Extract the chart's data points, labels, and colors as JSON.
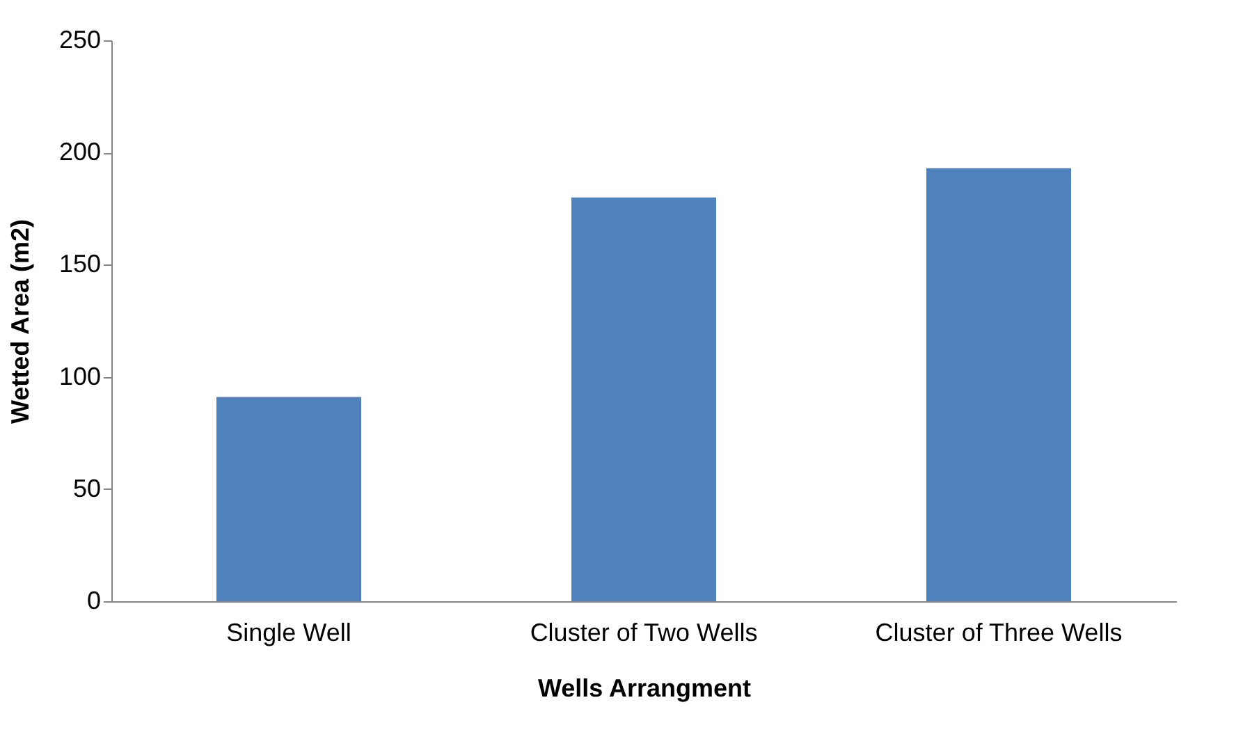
{
  "chart_data": {
    "type": "bar",
    "xlabel": "Wells Arrangment",
    "ylabel": "Wetted Area (m2)",
    "categories": [
      "Single Well",
      "Cluster of Two Wells",
      "Cluster of Three Wells"
    ],
    "values": [
      91,
      180,
      193
    ],
    "color": "#4f81bd",
    "ylim": [
      0,
      250
    ],
    "yticks": [
      0,
      50,
      100,
      150,
      200,
      250
    ],
    "grid": false
  }
}
